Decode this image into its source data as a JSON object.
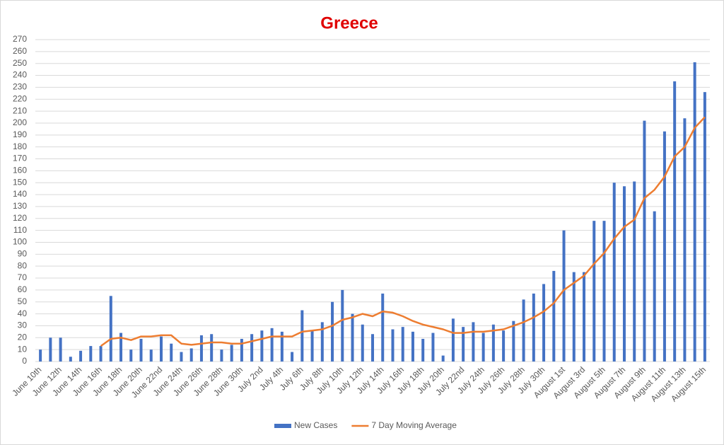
{
  "chart_data": {
    "type": "bar-line",
    "title": "Greece",
    "categories": [
      "June 10th",
      null,
      "June 12th",
      null,
      "June 14th",
      null,
      "June 16th",
      null,
      "June 18th",
      null,
      "June 20th",
      null,
      "June 22nd",
      null,
      "June 24th",
      null,
      "June 26th",
      null,
      "June 28th",
      null,
      "June 30th",
      null,
      "July 2nd",
      null,
      "July 4th",
      null,
      "July 6th",
      null,
      "July 8th",
      null,
      "July 10th",
      null,
      "July 12th",
      null,
      "July 14th",
      null,
      "July 16th",
      null,
      "July 18th",
      null,
      "July 20th",
      null,
      "July 22nd",
      null,
      "July 24th",
      null,
      "July 26th",
      null,
      "July 28th",
      null,
      "July 30th",
      null,
      "August 1st",
      null,
      "August 3rd",
      null,
      "August 5th",
      null,
      "August 7th",
      null,
      "August 9th",
      null,
      "August 11th",
      null,
      "August 13th",
      null,
      "August 15th"
    ],
    "series": [
      {
        "name": "New Cases",
        "type": "bar",
        "color": "#4472c4",
        "values": [
          10,
          20,
          20,
          4,
          9,
          13,
          13,
          55,
          24,
          10,
          19,
          10,
          21,
          15,
          8,
          11,
          22,
          23,
          10,
          14,
          19,
          23,
          26,
          28,
          25,
          8,
          43,
          26,
          33,
          50,
          60,
          40,
          31,
          23,
          57,
          27,
          29,
          25,
          19,
          24,
          5,
          36,
          29,
          33,
          24,
          31,
          26,
          34,
          52,
          57,
          65,
          76,
          110,
          75,
          75,
          118,
          118,
          150,
          147,
          151,
          202,
          126,
          193,
          235,
          204,
          251,
          226
        ]
      },
      {
        "name": "7 Day Moving Average",
        "type": "line",
        "color": "#ed7d31",
        "values": [
          null,
          null,
          null,
          null,
          null,
          null,
          13,
          19,
          20,
          18,
          21,
          21,
          22,
          22,
          15,
          14,
          15,
          16,
          16,
          15,
          15,
          17,
          19,
          21,
          21,
          21,
          25,
          26,
          27,
          30,
          35,
          37,
          40,
          38,
          42,
          41,
          38,
          34,
          31,
          29,
          27,
          24,
          24,
          25,
          25,
          26,
          27,
          30,
          33,
          37,
          42,
          49,
          60,
          66,
          72,
          82,
          91,
          103,
          113,
          119,
          137,
          144,
          155,
          172,
          180,
          196,
          205
        ]
      }
    ],
    "ylim": [
      0,
      270
    ],
    "yticks": [
      0,
      10,
      20,
      30,
      40,
      50,
      60,
      70,
      80,
      90,
      100,
      110,
      120,
      130,
      140,
      150,
      160,
      170,
      180,
      190,
      200,
      210,
      220,
      230,
      240,
      250,
      260,
      270
    ],
    "grid": true,
    "legend": "bottom"
  }
}
